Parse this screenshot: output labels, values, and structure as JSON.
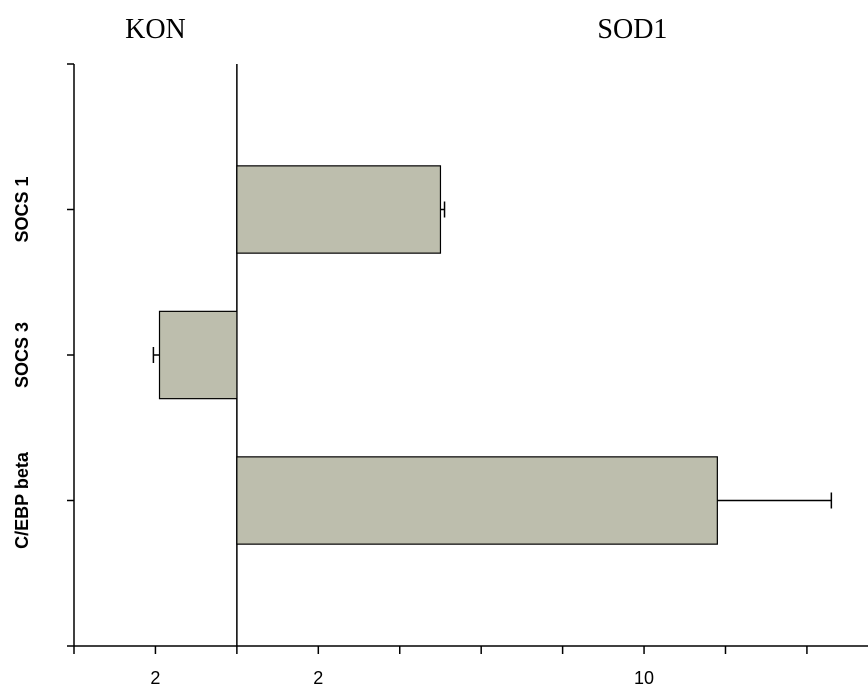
{
  "chart_data": {
    "type": "bar",
    "orientation": "horizontal",
    "left_label": "KON",
    "right_label": "SOD1",
    "categories": [
      "SOCS 1",
      "SOCS 3",
      "C/EBP beta"
    ],
    "values": [
      5,
      -1.9,
      11.8
    ],
    "errors": [
      0.1,
      0.15,
      2.8
    ],
    "x_ticks": [
      {
        "value": -2,
        "label": "2"
      },
      {
        "value": 2,
        "label": "2"
      },
      {
        "value": 10,
        "label": "10"
      }
    ],
    "x_minor_ticks": [
      -4,
      -2,
      0,
      2,
      4,
      6,
      8,
      10,
      12,
      14
    ],
    "xlim": [
      -4,
      15.5
    ],
    "bar_color": "#bdbead",
    "bar_edge_color": "#000000",
    "grid": false,
    "legend": "none"
  }
}
